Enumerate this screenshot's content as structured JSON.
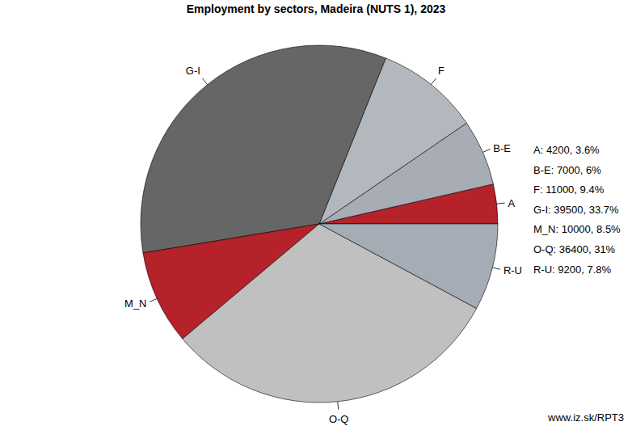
{
  "chart_data": {
    "type": "pie",
    "title": "Employment by sectors, Madeira (NUTS 1), 2023",
    "categories": [
      "A",
      "B-E",
      "F",
      "G-I",
      "M_N",
      "O-Q",
      "R-U"
    ],
    "values": [
      4200,
      7000,
      11000,
      39500,
      10000,
      36400,
      9200
    ],
    "value_labels": [
      "A: 4200, 3.6%",
      "B-E: 7000, 6%",
      "F: 11000, 9.4%",
      "G-I: 39500, 33.7%",
      "M_N: 10000, 8.5%",
      "O-Q: 36400, 31%",
      "R-U: 9200, 7.8%"
    ],
    "colors": [
      "#b5222a",
      "#a8adb5",
      "#b3b8bf",
      "#666666",
      "#b5222a",
      "#c0c0c0",
      "#a5acb5"
    ],
    "source": "www.iz.sk/RPT3"
  }
}
